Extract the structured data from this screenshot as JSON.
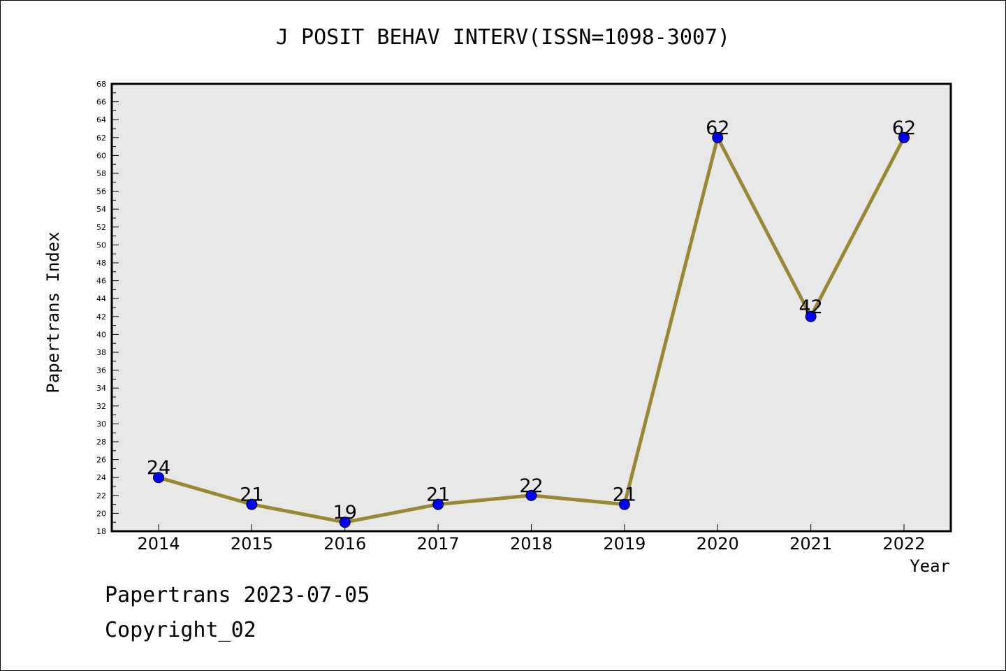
{
  "chart_data": {
    "type": "line",
    "title": "J POSIT BEHAV INTERV(ISSN=1098-3007)",
    "xlabel": "Year",
    "ylabel": "Papertrans Index",
    "x": [
      "2014",
      "2015",
      "2016",
      "2017",
      "2018",
      "2019",
      "2020",
      "2021",
      "2022"
    ],
    "series": [
      {
        "values": [
          24,
          21,
          19,
          21,
          22,
          21,
          62,
          42,
          62
        ]
      }
    ],
    "ylim": [
      18,
      68
    ],
    "ytick_step": 2,
    "grid": false,
    "colors": {
      "line": "#998833",
      "marker": "#0000ff",
      "plot_bg": "#e8e8e8"
    }
  },
  "footer": {
    "line1": "Papertrans 2023-07-05",
    "line2": "Copyright_02"
  }
}
